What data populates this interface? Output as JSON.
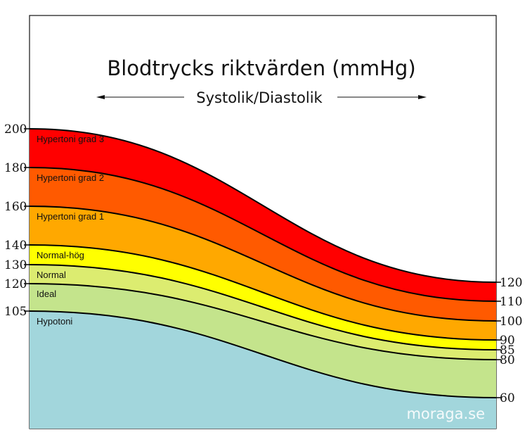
{
  "chart_data": {
    "type": "area",
    "title": "Blodtrycks riktvärden (mmHg)",
    "subtitle": "Systolik/Diastolik",
    "left_axis_ticks": [
      200,
      180,
      160,
      140,
      130,
      120,
      105
    ],
    "right_axis_ticks": [
      120,
      110,
      100,
      90,
      85,
      80,
      60
    ],
    "bands": [
      {
        "name": "Hypertoni grad 3",
        "systolic": [
          180,
          200
        ],
        "diastolic": [
          110,
          120
        ],
        "color": "#ff0000"
      },
      {
        "name": "Hypertoni grad 2",
        "systolic": [
          160,
          180
        ],
        "diastolic": [
          100,
          110
        ],
        "color": "#ff5a00"
      },
      {
        "name": "Hypertoni grad 1",
        "systolic": [
          140,
          160
        ],
        "diastolic": [
          90,
          100
        ],
        "color": "#ffa800"
      },
      {
        "name": "Normal-hög",
        "systolic": [
          130,
          140
        ],
        "diastolic": [
          85,
          90
        ],
        "color": "#ffff00"
      },
      {
        "name": "Normal",
        "systolic": [
          120,
          130
        ],
        "diastolic": [
          80,
          85
        ],
        "color": "#dcec70"
      },
      {
        "name": "Ideal",
        "systolic": [
          105,
          120
        ],
        "diastolic": [
          60,
          80
        ],
        "color": "#c4e48c"
      },
      {
        "name": "Hypotoni",
        "systolic": [
          null,
          105
        ],
        "diastolic": [
          null,
          60
        ],
        "color": "#a2d6dc"
      }
    ],
    "watermark": "moraga.se"
  }
}
